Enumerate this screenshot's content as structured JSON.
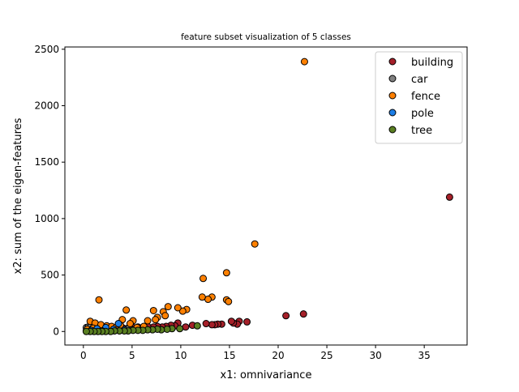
{
  "chart_data": {
    "type": "scatter",
    "title": "feature subset visualization of 5 classes",
    "xlabel": "x1: omnivariance",
    "ylabel": "x2: sum of the eigen-features",
    "xlim": [
      -1.9,
      39.4
    ],
    "ylim": [
      -120,
      2520
    ],
    "xticks": [
      0,
      5,
      10,
      15,
      20,
      25,
      30,
      35
    ],
    "yticks": [
      0,
      500,
      1000,
      1500,
      2000,
      2500
    ],
    "grid": false,
    "legend_position": "top-right",
    "series": [
      {
        "name": "building",
        "color": "#a52029",
        "points": [
          [
            37.6,
            1190
          ],
          [
            22.6,
            155
          ],
          [
            20.8,
            140
          ],
          [
            16.8,
            85
          ],
          [
            16.0,
            90
          ],
          [
            15.8,
            65
          ],
          [
            15.4,
            75
          ],
          [
            15.2,
            90
          ],
          [
            14.2,
            65
          ],
          [
            13.8,
            65
          ],
          [
            13.5,
            60
          ],
          [
            13.2,
            60
          ],
          [
            12.6,
            70
          ],
          [
            11.2,
            55
          ],
          [
            10.5,
            40
          ],
          [
            9.7,
            75
          ],
          [
            9.4,
            50
          ],
          [
            9.0,
            55
          ],
          [
            8.5,
            45
          ],
          [
            8.1,
            40
          ],
          [
            7.6,
            45
          ],
          [
            7.2,
            40
          ],
          [
            6.6,
            45
          ],
          [
            6.1,
            35
          ],
          [
            5.6,
            40
          ],
          [
            5.1,
            35
          ],
          [
            4.6,
            30
          ],
          [
            4.1,
            30
          ],
          [
            3.6,
            35
          ],
          [
            3.1,
            30
          ],
          [
            2.6,
            25
          ],
          [
            2.1,
            20
          ],
          [
            1.6,
            25
          ],
          [
            1.1,
            15
          ],
          [
            0.6,
            10
          ],
          [
            0.3,
            5
          ]
        ]
      },
      {
        "name": "car",
        "color": "#808080",
        "points": [
          [
            0.3,
            35
          ],
          [
            0.5,
            40
          ],
          [
            0.8,
            55
          ],
          [
            1.0,
            30
          ],
          [
            1.3,
            45
          ],
          [
            1.6,
            25
          ],
          [
            2.0,
            40
          ],
          [
            2.3,
            35
          ],
          [
            2.6,
            20
          ],
          [
            3.0,
            30
          ],
          [
            3.4,
            25
          ],
          [
            3.8,
            20
          ],
          [
            4.2,
            15
          ],
          [
            4.6,
            25
          ],
          [
            5.0,
            15
          ]
        ]
      },
      {
        "name": "fence",
        "color": "#ff8000",
        "points": [
          [
            22.7,
            2390
          ],
          [
            17.6,
            775
          ],
          [
            14.7,
            520
          ],
          [
            12.3,
            470
          ],
          [
            13.2,
            305
          ],
          [
            12.8,
            285
          ],
          [
            12.2,
            305
          ],
          [
            14.7,
            280
          ],
          [
            14.9,
            265
          ],
          [
            10.6,
            195
          ],
          [
            10.2,
            180
          ],
          [
            9.7,
            210
          ],
          [
            8.7,
            220
          ],
          [
            8.2,
            175
          ],
          [
            8.4,
            140
          ],
          [
            7.2,
            185
          ],
          [
            7.6,
            125
          ],
          [
            7.4,
            105
          ],
          [
            6.6,
            95
          ],
          [
            5.1,
            95
          ],
          [
            4.4,
            190
          ],
          [
            4.0,
            105
          ],
          [
            1.6,
            280
          ],
          [
            0.7,
            90
          ],
          [
            1.2,
            75
          ],
          [
            1.8,
            60
          ],
          [
            2.4,
            50
          ],
          [
            2.9,
            45
          ],
          [
            3.4,
            40
          ],
          [
            3.8,
            55
          ],
          [
            4.8,
            70
          ],
          [
            5.5,
            35
          ],
          [
            6.2,
            45
          ],
          [
            0.4,
            20
          ],
          [
            1.0,
            30
          ]
        ]
      },
      {
        "name": "pole",
        "color": "#1c7ee6",
        "points": [
          [
            3.6,
            70
          ],
          [
            2.3,
            35
          ],
          [
            1.4,
            25
          ],
          [
            0.8,
            10
          ],
          [
            3.1,
            20
          ],
          [
            4.2,
            15
          ],
          [
            1.9,
            5
          ]
        ]
      },
      {
        "name": "tree",
        "color": "#5a7f22",
        "points": [
          [
            11.7,
            50
          ],
          [
            9.9,
            25
          ],
          [
            9.1,
            25
          ],
          [
            8.6,
            20
          ],
          [
            8.0,
            15
          ],
          [
            7.6,
            20
          ],
          [
            7.1,
            15
          ],
          [
            6.6,
            15
          ],
          [
            6.1,
            10
          ],
          [
            5.6,
            10
          ],
          [
            5.1,
            10
          ],
          [
            4.6,
            5
          ],
          [
            4.2,
            5
          ],
          [
            3.7,
            5
          ],
          [
            3.2,
            5
          ],
          [
            2.8,
            0
          ],
          [
            2.3,
            0
          ],
          [
            1.9,
            0
          ],
          [
            1.5,
            0
          ],
          [
            1.1,
            0
          ],
          [
            0.7,
            0
          ],
          [
            0.3,
            0
          ]
        ]
      }
    ]
  }
}
